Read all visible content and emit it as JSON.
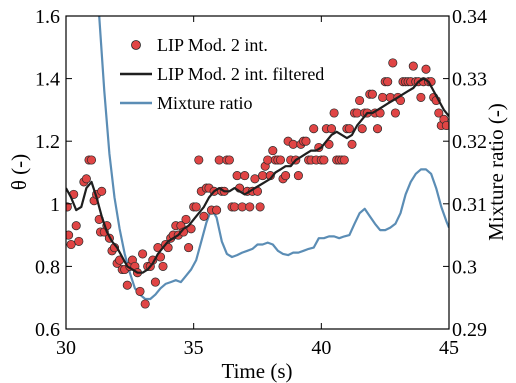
{
  "chart_data": {
    "type": "line",
    "xlabel": "Time (s)",
    "ylabel_left": "θ (-)",
    "ylabel_right": "Mixture ratio (-)",
    "xlim": [
      30,
      45
    ],
    "ylim_left": [
      0.6,
      1.6
    ],
    "ylim_right": [
      0.29,
      0.34
    ],
    "x_ticks": [
      "30",
      "35",
      "40",
      "45"
    ],
    "y_ticks_left": [
      "0.6",
      "0.8",
      "1",
      "1.2",
      "1.4",
      "1.6"
    ],
    "y_ticks_right": [
      "0.29",
      "0.3",
      "0.31",
      "0.32",
      "0.33",
      "0.34"
    ],
    "legend_position": "top-left",
    "colors": {
      "scatter": "#e04545",
      "filtered": "#1f1f1f",
      "mixture": "#5b8db5"
    },
    "series": [
      {
        "name": "LIP Mod. 2 int.",
        "type": "scatter",
        "axis": "left",
        "x": [
          30.05,
          30.1,
          30.2,
          30.3,
          30.4,
          30.5,
          30.7,
          30.8,
          30.9,
          31.0,
          31.1,
          31.2,
          31.3,
          31.35,
          31.4,
          31.5,
          31.6,
          31.7,
          31.8,
          31.9,
          32.0,
          32.1,
          32.2,
          32.3,
          32.4,
          32.5,
          32.6,
          32.7,
          32.8,
          32.9,
          33.0,
          33.1,
          33.2,
          33.3,
          33.4,
          33.5,
          33.6,
          33.7,
          33.8,
          33.9,
          34.0,
          34.1,
          34.2,
          34.3,
          34.4,
          34.5,
          34.6,
          34.7,
          34.8,
          34.9,
          35.0,
          35.1,
          35.2,
          35.3,
          35.4,
          35.5,
          35.6,
          35.7,
          35.8,
          35.9,
          36.0,
          36.1,
          36.2,
          36.3,
          36.4,
          36.5,
          36.6,
          36.7,
          36.8,
          36.9,
          37.0,
          37.1,
          37.2,
          37.3,
          37.4,
          37.5,
          37.6,
          37.7,
          37.8,
          37.9,
          38.0,
          38.1,
          38.2,
          38.3,
          38.4,
          38.5,
          38.6,
          38.7,
          38.8,
          38.9,
          39.0,
          39.1,
          39.2,
          39.3,
          39.4,
          39.5,
          39.6,
          39.7,
          39.8,
          39.9,
          40.0,
          40.1,
          40.2,
          40.3,
          40.4,
          40.5,
          40.6,
          40.7,
          40.8,
          40.9,
          41.0,
          41.1,
          41.2,
          41.3,
          41.4,
          41.5,
          41.6,
          41.7,
          41.8,
          41.9,
          42.0,
          42.1,
          42.2,
          42.3,
          42.4,
          42.5,
          42.6,
          42.7,
          42.8,
          42.9,
          43.0,
          43.1,
          43.2,
          43.3,
          43.4,
          43.5,
          43.6,
          43.7,
          43.8,
          43.9,
          44.0,
          44.1,
          44.2,
          44.3,
          44.4,
          44.5,
          44.6,
          44.7,
          44.8,
          44.9
        ],
        "y": [
          0.99,
          0.9,
          0.87,
          1.03,
          0.93,
          0.88,
          1.07,
          1.08,
          1.14,
          1.14,
          1.01,
          1.03,
          0.95,
          0.91,
          1.04,
          0.91,
          0.93,
          0.89,
          0.85,
          0.86,
          0.81,
          0.82,
          0.79,
          0.79,
          0.74,
          0.8,
          0.82,
          0.8,
          0.78,
          0.72,
          0.84,
          0.68,
          0.8,
          0.8,
          0.82,
          0.75,
          0.86,
          0.83,
          0.8,
          0.87,
          0.86,
          0.89,
          0.9,
          0.93,
          0.9,
          0.93,
          0.91,
          0.95,
          0.86,
          0.92,
          0.99,
          0.99,
          1.14,
          1.04,
          0.96,
          1.05,
          1.05,
          0.98,
          1.04,
          0.98,
          1.14,
          1.04,
          1.04,
          1.14,
          1.14,
          0.99,
          0.99,
          1.09,
          1.05,
          0.99,
          1.09,
          1.04,
          0.99,
          1.04,
          1.08,
          1.04,
          0.99,
          1.09,
          1.12,
          1.14,
          1.09,
          1.17,
          1.14,
          1.14,
          1.14,
          1.08,
          1.09,
          1.2,
          1.14,
          1.19,
          1.14,
          1.09,
          1.19,
          1.2,
          1.2,
          1.14,
          1.14,
          1.24,
          1.14,
          1.18,
          1.14,
          1.14,
          1.24,
          1.19,
          1.24,
          1.29,
          1.14,
          1.14,
          1.14,
          1.14,
          1.24,
          1.24,
          1.19,
          1.29,
          1.29,
          1.33,
          1.24,
          1.29,
          1.29,
          1.35,
          1.35,
          1.29,
          1.24,
          1.29,
          1.34,
          1.39,
          1.39,
          1.34,
          1.45,
          1.29,
          1.34,
          1.33,
          1.39,
          1.39,
          1.39,
          1.39,
          1.44,
          1.39,
          1.39,
          1.34,
          1.39,
          1.43,
          1.39,
          1.39,
          1.34,
          1.33,
          1.29,
          1.25,
          1.27,
          1.25
        ]
      },
      {
        "name": "LIP Mod. 2 int. filtered",
        "type": "line",
        "axis": "left",
        "x": [
          30.0,
          30.2,
          30.4,
          30.6,
          30.8,
          31.0,
          31.2,
          31.4,
          31.6,
          31.8,
          32.0,
          32.2,
          32.4,
          32.6,
          32.8,
          33.0,
          33.2,
          33.4,
          33.6,
          33.8,
          34.0,
          34.2,
          34.4,
          34.6,
          34.8,
          35.0,
          35.2,
          35.4,
          35.6,
          35.8,
          36.0,
          36.2,
          36.4,
          36.6,
          36.8,
          37.0,
          37.2,
          37.4,
          37.6,
          37.8,
          38.0,
          38.2,
          38.4,
          38.6,
          38.8,
          39.0,
          39.2,
          39.4,
          39.6,
          39.8,
          40.0,
          40.2,
          40.4,
          40.6,
          40.8,
          41.0,
          41.2,
          41.4,
          41.6,
          41.8,
          42.0,
          42.2,
          42.4,
          42.6,
          42.8,
          43.0,
          43.2,
          43.4,
          43.6,
          43.8,
          44.0,
          44.2,
          44.4,
          44.6,
          44.8,
          45.0
        ],
        "y": [
          1.05,
          1.02,
          0.98,
          0.99,
          1.05,
          1.07,
          1.02,
          0.96,
          0.91,
          0.88,
          0.86,
          0.83,
          0.8,
          0.79,
          0.78,
          0.78,
          0.79,
          0.81,
          0.84,
          0.86,
          0.88,
          0.89,
          0.9,
          0.92,
          0.93,
          0.95,
          0.97,
          0.99,
          1.02,
          1.04,
          1.05,
          1.04,
          1.04,
          1.05,
          1.04,
          1.03,
          1.04,
          1.05,
          1.06,
          1.07,
          1.08,
          1.1,
          1.11,
          1.12,
          1.12,
          1.14,
          1.15,
          1.16,
          1.17,
          1.17,
          1.18,
          1.2,
          1.22,
          1.23,
          1.22,
          1.21,
          1.22,
          1.25,
          1.27,
          1.29,
          1.29,
          1.3,
          1.31,
          1.32,
          1.33,
          1.34,
          1.35,
          1.36,
          1.37,
          1.39,
          1.4,
          1.39,
          1.36,
          1.33,
          1.3,
          1.28
        ]
      },
      {
        "name": "Mixture ratio",
        "type": "line",
        "axis": "right",
        "x": [
          31.3,
          31.5,
          31.7,
          31.9,
          32.1,
          32.3,
          32.5,
          32.7,
          32.9,
          33.1,
          33.3,
          33.5,
          33.7,
          33.9,
          34.1,
          34.3,
          34.5,
          34.7,
          34.9,
          35.1,
          35.3,
          35.5,
          35.7,
          35.9,
          36.1,
          36.3,
          36.5,
          36.7,
          36.9,
          37.1,
          37.3,
          37.5,
          37.7,
          37.9,
          38.1,
          38.3,
          38.5,
          38.7,
          38.9,
          39.1,
          39.3,
          39.5,
          39.7,
          39.9,
          40.1,
          40.3,
          40.5,
          40.7,
          40.9,
          41.1,
          41.3,
          41.5,
          41.7,
          41.9,
          42.1,
          42.3,
          42.5,
          42.7,
          42.9,
          43.1,
          43.3,
          43.5,
          43.7,
          43.9,
          44.1,
          44.3,
          44.5,
          44.7,
          44.9,
          45.0
        ],
        "y": [
          0.34,
          0.328,
          0.318,
          0.311,
          0.306,
          0.302,
          0.299,
          0.2965,
          0.2955,
          0.2948,
          0.2948,
          0.2955,
          0.2965,
          0.2972,
          0.2975,
          0.2978,
          0.2975,
          0.2985,
          0.2995,
          0.301,
          0.304,
          0.307,
          0.3092,
          0.3078,
          0.304,
          0.302,
          0.3015,
          0.3018,
          0.3022,
          0.3025,
          0.3028,
          0.3035,
          0.3035,
          0.3038,
          0.3035,
          0.3025,
          0.302,
          0.3018,
          0.3022,
          0.3022,
          0.3025,
          0.3028,
          0.303,
          0.3045,
          0.3045,
          0.3048,
          0.3048,
          0.3045,
          0.3048,
          0.305,
          0.3068,
          0.3085,
          0.3092,
          0.308,
          0.3068,
          0.3058,
          0.3058,
          0.3062,
          0.3068,
          0.3085,
          0.3115,
          0.3135,
          0.3148,
          0.3155,
          0.3155,
          0.3148,
          0.3125,
          0.3095,
          0.3072,
          0.3062
        ]
      }
    ]
  }
}
